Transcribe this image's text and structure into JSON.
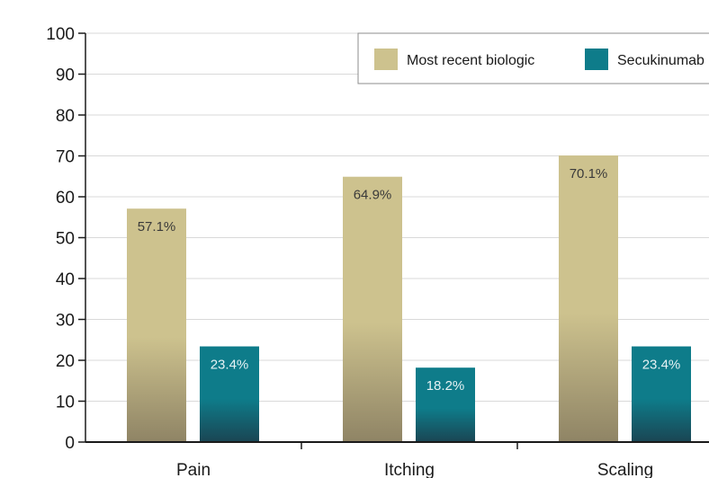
{
  "chart_data": {
    "type": "bar",
    "title": "",
    "xlabel": "",
    "ylabel": "",
    "ylim": [
      0,
      100
    ],
    "yticks": [
      0,
      10,
      20,
      30,
      40,
      50,
      60,
      70,
      80,
      90,
      100
    ],
    "categories": [
      "Pain",
      "Itching",
      "Scaling"
    ],
    "series": [
      {
        "name": "Most recent biologic",
        "values": [
          57.1,
          64.9,
          70.1
        ],
        "labels": [
          "57.1%",
          "64.9%",
          "70.1%"
        ]
      },
      {
        "name": "Secukinumab",
        "values": [
          23.4,
          18.2,
          23.4
        ],
        "labels": [
          "23.4%",
          "18.2%",
          "23.4%"
        ]
      }
    ],
    "colors": {
      "series_top": [
        "#cdc28e",
        "#0e7c8a"
      ],
      "series_bottom": [
        "#8f8465",
        "#1a4553"
      ],
      "label_text": [
        "#3a3a3a",
        "#e6f2f4"
      ]
    },
    "grid": true,
    "legend_position": "top-right"
  }
}
